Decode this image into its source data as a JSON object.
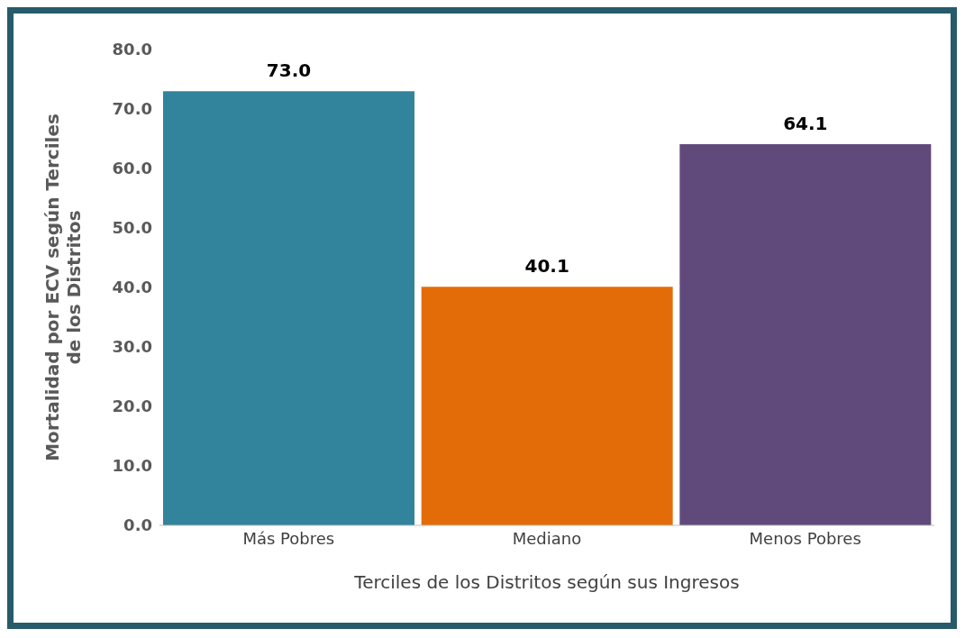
{
  "chart_data": {
    "type": "bar",
    "xlabel": "Terciles de los Distritos según sus Ingresos",
    "ylabel": "Mortalidad por ECV según Terciles de los Distritos",
    "categories": [
      "Más Pobres",
      "Mediano",
      "Menos Pobres"
    ],
    "values": [
      73.0,
      40.1,
      64.1
    ],
    "colors": [
      "#31849b",
      "#e36c09",
      "#604a7b"
    ],
    "value_labels": [
      "73.0",
      "40.1",
      "64.1"
    ],
    "ylim": [
      0,
      80
    ],
    "yticks": [
      {
        "value": 0,
        "label": "0.0"
      },
      {
        "value": 10,
        "label": "10.0"
      },
      {
        "value": 20,
        "label": "20.0"
      },
      {
        "value": 30,
        "label": "30.0"
      },
      {
        "value": 40,
        "label": "40.0"
      },
      {
        "value": 50,
        "label": "50.0"
      },
      {
        "value": 60,
        "label": "60.0"
      },
      {
        "value": 70,
        "label": "70.0"
      },
      {
        "value": 80,
        "label": "80.0"
      }
    ],
    "grid": false,
    "legend": false
  }
}
